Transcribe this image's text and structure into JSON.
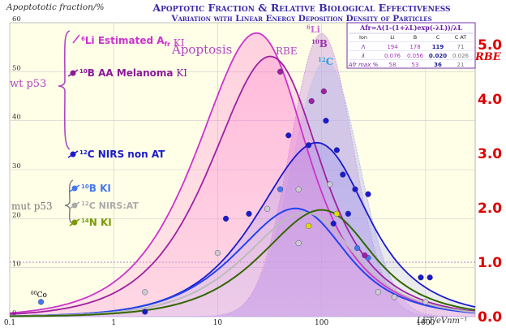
{
  "chart_data": {
    "type": "line",
    "title": "Apoptotic Fraction & Relative Biological Effectiveness",
    "subtitle": "Variation with Linear Energy Deposition Density of Particles",
    "ylabel": "Apoptototic fraction/%",
    "y2label": "RBE",
    "xlabel": "LET/eVnm⁻¹",
    "x_scale": "log",
    "xlim": [
      0.1,
      3000
    ],
    "ylim": [
      0,
      60
    ],
    "y2lim": [
      0,
      5.4
    ],
    "x_ticks": [
      "0.1",
      "1",
      "10",
      "100",
      "1000"
    ],
    "y_ticks": [
      "0",
      "10",
      "20",
      "30",
      "40",
      "50",
      "60"
    ],
    "y2_ticks": [
      "0.0",
      "1.0",
      "2.0",
      "3.0",
      "4.0",
      "5.0"
    ],
    "grid": true,
    "formula": "Afr=Λ(1-(1+λL)exp(-λL))/λL",
    "param_table": {
      "headers": [
        "Ion",
        "Li",
        "B",
        "C",
        "C AT"
      ],
      "rows": [
        {
          "label": "Λ",
          "values": [
            "194",
            "178",
            "119",
            "71"
          ]
        },
        {
          "label": "λ",
          "values": [
            "0.076",
            "0.056",
            "0.020",
            "0.026"
          ]
        },
        {
          "label": "Afr max %",
          "values": [
            "58",
            "53",
            "36",
            "21"
          ]
        }
      ]
    },
    "labels": {
      "wt_p53": "wt p53",
      "mut_p53": "mut p53",
      "apoptosis": "Apoptosis",
      "rbe_curve": "RBE",
      "li6": "6Li",
      "b10": "10B",
      "c12": "12C",
      "co60": "60Co"
    },
    "legend": [
      {
        "iso": "6",
        "el": "Li",
        "text": " Estimated A",
        "sub": "fr",
        "suffix": " KI"
      },
      {
        "iso": "10",
        "el": "B",
        "text": " AA Melanoma",
        "sub": "",
        "suffix": " KI"
      },
      {
        "iso": "12",
        "el": "C",
        "text": " NIRS non AT",
        "sub": "",
        "suffix": ""
      },
      {
        "iso": "10",
        "el": "B",
        "text": " KI",
        "sub": "",
        "suffix": ""
      },
      {
        "iso": "12",
        "el": "C",
        "text": " NIRS:AT",
        "sub": "",
        "suffix": ""
      },
      {
        "iso": "14",
        "el": "N",
        "text": " KI",
        "sub": "",
        "suffix": ""
      }
    ],
    "series": [
      {
        "name": "6Li Estimated Afr",
        "kind": "afr",
        "L": 194,
        "lam": 0.076,
        "color": "#cc33cc"
      },
      {
        "name": "10B AA Melanoma",
        "kind": "afr",
        "L": 178,
        "lam": 0.056,
        "color": "#a020a0"
      },
      {
        "name": "12C NIRS non AT",
        "kind": "afr",
        "L": 119,
        "lam": 0.02,
        "color": "#1a1acc"
      },
      {
        "name": "10B KI",
        "kind": "afr",
        "L": 74,
        "lam": 0.032,
        "color": "#2244ee"
      },
      {
        "name": "12C NIRS:AT",
        "kind": "afr",
        "L": 71,
        "lam": 0.026,
        "color": "#bbbbbb"
      },
      {
        "name": "14N KI",
        "kind": "afr",
        "L": 73,
        "lam": 0.018,
        "color": "#336600"
      },
      {
        "name": "RBE 6Li",
        "kind": "rbe",
        "peak": 5.2,
        "x0": 100,
        "w": 0.3,
        "base": 1.0,
        "color": "#cc99dd"
      },
      {
        "name": "RBE 10B",
        "kind": "rbe",
        "peak": 4.7,
        "x0": 110,
        "w": 0.32,
        "base": 1.0,
        "color": "#bbbbee"
      }
    ],
    "points": [
      {
        "x": 0.2,
        "y": 3.0,
        "color": "#4477ee"
      },
      {
        "x": 2,
        "y": 1.0,
        "color": "#1a1acc"
      },
      {
        "x": 20,
        "y": 21.0,
        "color": "#1a1acc"
      },
      {
        "x": 12,
        "y": 20.0,
        "color": "#1a1acc"
      },
      {
        "x": 48,
        "y": 37.0,
        "color": "#1a1acc"
      },
      {
        "x": 75,
        "y": 35.0,
        "color": "#1a1acc"
      },
      {
        "x": 110,
        "y": 40.0,
        "color": "#1a1acc"
      },
      {
        "x": 140,
        "y": 34.0,
        "color": "#1a1acc"
      },
      {
        "x": 160,
        "y": 29.0,
        "color": "#1a1acc"
      },
      {
        "x": 210,
        "y": 26.0,
        "color": "#1a1acc"
      },
      {
        "x": 280,
        "y": 25.0,
        "color": "#1a1acc"
      },
      {
        "x": 180,
        "y": 21.0,
        "color": "#1a1acc"
      },
      {
        "x": 130,
        "y": 19.0,
        "color": "#1a1acc"
      },
      {
        "x": 40,
        "y": 26.0,
        "color": "#4477ee"
      },
      {
        "x": 220,
        "y": 14.0,
        "color": "#4477ee"
      },
      {
        "x": 280,
        "y": 12.0,
        "color": "#4477ee"
      },
      {
        "x": 900,
        "y": 8.0,
        "color": "#1a1acc"
      },
      {
        "x": 1100,
        "y": 8.0,
        "color": "#1a1acc"
      },
      {
        "x": 40,
        "y": 50.0,
        "color": "#a020a0"
      },
      {
        "x": 80,
        "y": 44.0,
        "color": "#a020a0"
      },
      {
        "x": 105,
        "y": 46.0,
        "color": "#a020a0"
      },
      {
        "x": 260,
        "y": 12.5,
        "color": "#a020a0"
      },
      {
        "x": 75,
        "y": 18.5,
        "color": "#dddd00"
      },
      {
        "x": 140,
        "y": 21.0,
        "color": "#dddd00"
      },
      {
        "x": 30,
        "y": 22.0,
        "color": "#cccccc"
      },
      {
        "x": 60,
        "y": 26.0,
        "color": "#cccccc"
      },
      {
        "x": 120,
        "y": 27.0,
        "color": "#cccccc"
      },
      {
        "x": 10,
        "y": 13.0,
        "color": "#cccccc"
      },
      {
        "x": 2,
        "y": 5.0,
        "color": "#cccccc"
      },
      {
        "x": 60,
        "y": 15.0,
        "color": "#cccccc"
      },
      {
        "x": 350,
        "y": 5.0,
        "color": "#cccccc"
      },
      {
        "x": 500,
        "y": 4.0,
        "color": "#cccccc"
      },
      {
        "x": 1000,
        "y": 3.0,
        "color": "#cccccc"
      }
    ]
  }
}
